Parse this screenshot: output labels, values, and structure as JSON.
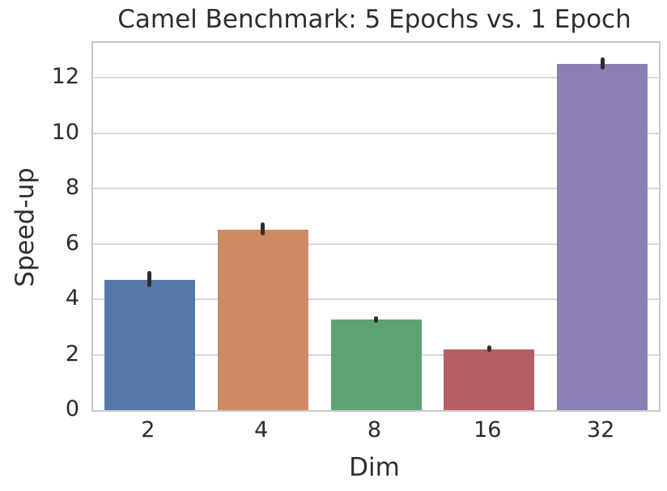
{
  "chart_data": {
    "type": "bar",
    "title": "Camel Benchmark: 5 Epochs vs. 1 Epoch",
    "xlabel": "Dim",
    "ylabel": "Speed-up",
    "categories": [
      "2",
      "4",
      "8",
      "16",
      "32"
    ],
    "values": [
      4.72,
      6.53,
      3.28,
      2.2,
      12.52
    ],
    "error_low": [
      4.45,
      6.3,
      3.17,
      2.1,
      12.3
    ],
    "error_high": [
      5.02,
      6.78,
      3.4,
      2.33,
      12.75
    ],
    "bar_colors": [
      "#5578ab",
      "#cd8a63",
      "#5da372",
      "#b65f63",
      "#8a7eb4"
    ],
    "errorbar_color": "#2d2d2d",
    "yticks": [
      0,
      2,
      4,
      6,
      8,
      10,
      12
    ],
    "ylim": [
      0,
      13.27
    ],
    "grid": true,
    "grid_color": "#d9d9d9",
    "spine_color": "#c9c9c9",
    "background_color": "#ffffff",
    "legend": null
  }
}
